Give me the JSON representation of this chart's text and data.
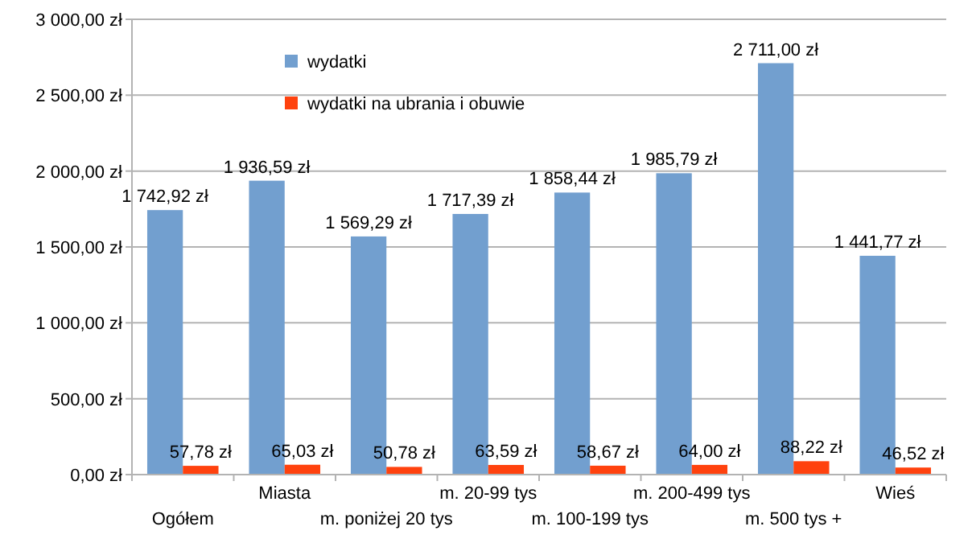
{
  "chart_data": {
    "type": "bar",
    "categories": [
      "Ogółem",
      "Miasta",
      "m. poniżej 20 tys",
      "m. 20-99 tys",
      "m. 100-199 tys",
      "m. 200-499 tys",
      "m. 500 tys +",
      "Wieś"
    ],
    "series": [
      {
        "name": "wydatki",
        "color": "#729fcf",
        "values": [
          1742.92,
          1936.59,
          1569.29,
          1717.39,
          1858.44,
          1985.79,
          2711.0,
          1441.77
        ],
        "value_labels": [
          "1 742,92 zł",
          "1 936,59 zł",
          "1 569,29 zł",
          "1 717,39 zł",
          "1 858,44 zł",
          "1 985,79 zł",
          "2 711,00 zł",
          "1 441,77 zł"
        ]
      },
      {
        "name": "wydatki na ubrania i obuwie",
        "color": "#ff420e",
        "values": [
          57.78,
          65.03,
          50.78,
          63.59,
          58.67,
          64.0,
          88.22,
          46.52
        ],
        "value_labels": [
          "57,78 zł",
          "65,03 zł",
          "50,78 zł",
          "63,59 zł",
          "58,67 zł",
          "64,00 zł",
          "88,22 zł",
          "46,52 zł"
        ]
      }
    ],
    "ylim": [
      0,
      3000
    ],
    "yticks": [
      {
        "value": 0,
        "label": "0,00 zł"
      },
      {
        "value": 500,
        "label": "500,00 zł"
      },
      {
        "value": 1000,
        "label": "1 000,00 zł"
      },
      {
        "value": 1500,
        "label": "1 500,00 zł"
      },
      {
        "value": 2000,
        "label": "2 000,00 zł"
      },
      {
        "value": 2500,
        "label": "2 500,00 zł"
      },
      {
        "value": 3000,
        "label": "3 000,00 zł"
      }
    ],
    "grid": "y",
    "legend": "top left"
  }
}
